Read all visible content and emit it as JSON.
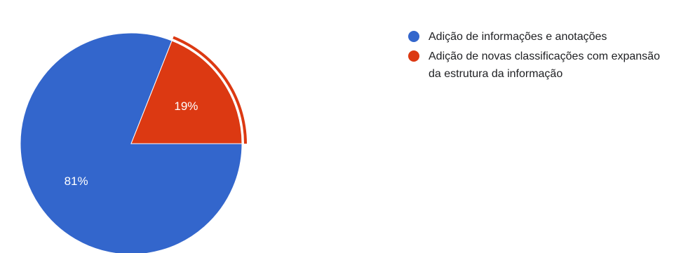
{
  "chart_data": {
    "type": "pie",
    "title": "",
    "slices": [
      {
        "label": "Adição de informações e anotações",
        "value": 81,
        "display": "81%",
        "color": "#3366cc"
      },
      {
        "label": "Adição de novas classificações com expansão da estrutura da informação",
        "value": 19,
        "display": "19%",
        "color": "#dc3912"
      }
    ],
    "highlighted_slice": 1,
    "legend_position": "right"
  }
}
